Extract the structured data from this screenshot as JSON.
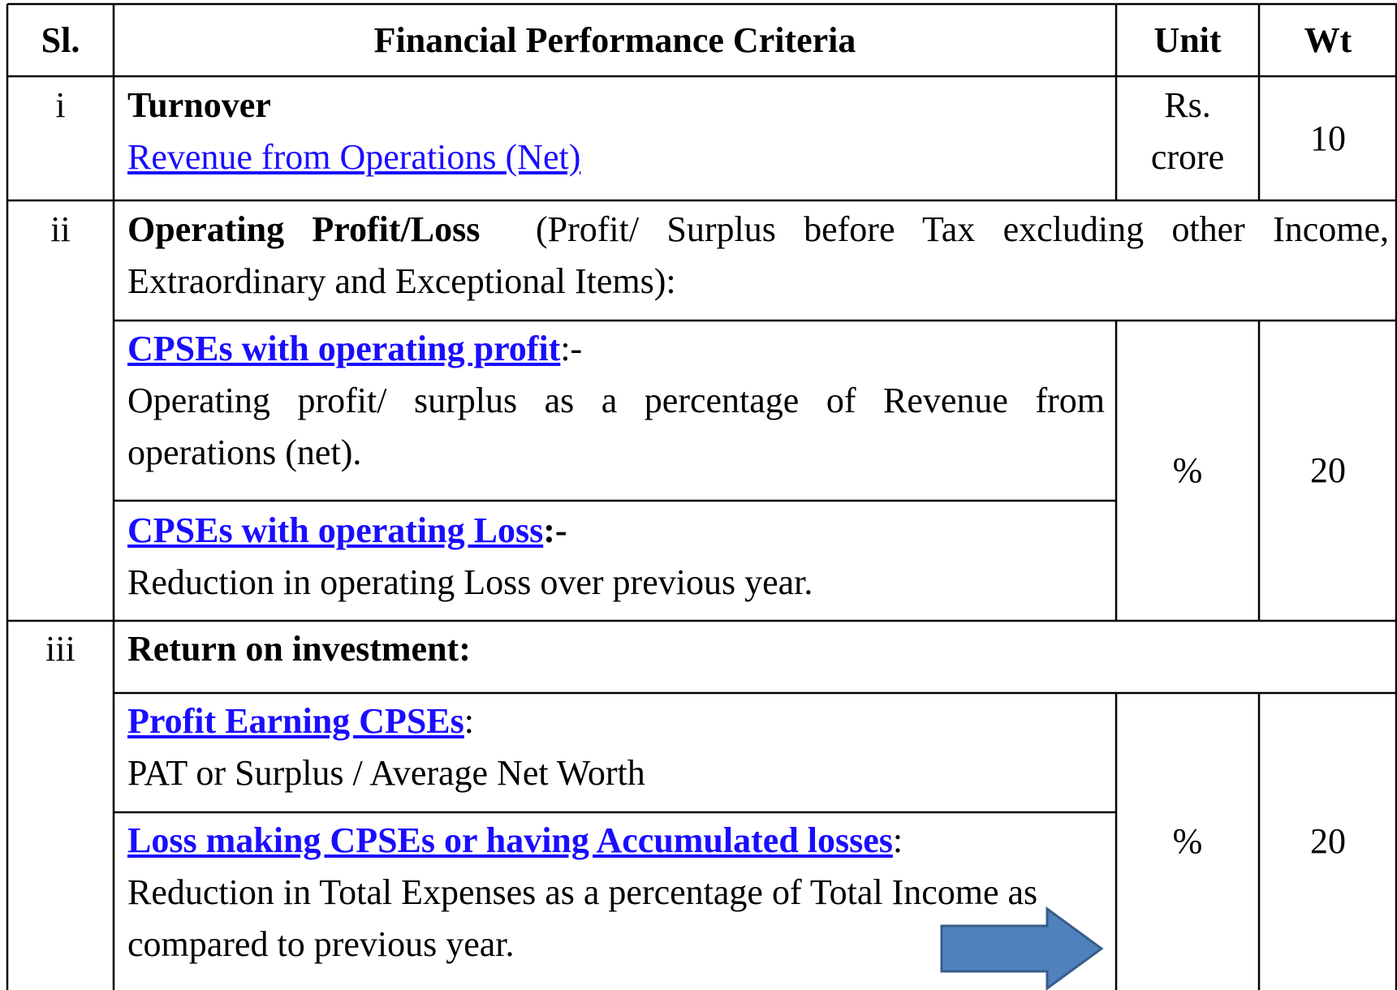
{
  "table": {
    "header": [
      "Sl.",
      "Financial Performance Criteria",
      "Unit",
      "Wt"
    ],
    "rows": [
      {
        "sl": "i",
        "title": "Turnover",
        "link": "Revenue from Operations (Net)",
        "unit": [
          "Rs.",
          "crore"
        ],
        "wt": "10"
      },
      {
        "sl": "ii",
        "title": "Operating Profit/Loss",
        "note": "(Profit/ Surplus before Tax excluding other Income, Extraordinary and Exceptional Items):",
        "unit": "%",
        "wt": "20",
        "items": [
          {
            "link": "CPSEs with operating profit",
            "suffix": ":-",
            "text": "Operating profit/ surplus as a percentage of Revenue from operations (net)."
          },
          {
            "link": "CPSEs with operating Loss",
            "suffix": ":-",
            "text": "Reduction in operating Loss over previous year."
          }
        ]
      },
      {
        "sl": "iii",
        "title": "Return on investment:",
        "unit": "%",
        "wt": "20",
        "items": [
          {
            "link": "Profit Earning CPSEs",
            "suffix": ":",
            "text": "PAT or Surplus / Average Net Worth"
          },
          {
            "link": "Loss making CPSEs or having Accumulated losses",
            "suffix": ":",
            "text": "Reduction in Total Expenses as a percentage of Total Income as compared to previous year."
          }
        ]
      }
    ]
  }
}
